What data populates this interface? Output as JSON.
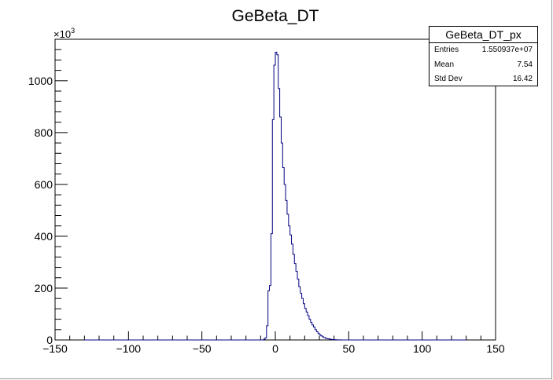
{
  "chart_data": {
    "type": "histogram",
    "title": "GeBeta_DT",
    "xlabel": "",
    "ylabel": "",
    "y_scale_label": "×10",
    "y_scale_exponent": "3",
    "xlim": [
      -150,
      150
    ],
    "ylim": [
      0,
      1160
    ],
    "x_ticks": [
      -150,
      -100,
      -50,
      0,
      50,
      100,
      150
    ],
    "x_tick_labels": [
      "−150",
      "−100",
      "−50",
      "0",
      "50",
      "100",
      "150"
    ],
    "y_ticks": [
      0,
      200,
      400,
      600,
      800,
      1000
    ],
    "y_tick_labels": [
      "0",
      "200",
      "400",
      "600",
      "800",
      "1000"
    ],
    "bin_edges": [
      -130,
      -8,
      -7,
      -6,
      -5,
      -4,
      -3,
      -2,
      -1,
      0,
      1,
      2,
      3,
      4,
      5,
      6,
      7,
      8,
      9,
      10,
      11,
      12,
      13,
      14,
      15,
      16,
      17,
      18,
      19,
      20,
      21,
      22,
      23,
      24,
      25,
      26,
      27,
      28,
      29,
      30,
      31,
      32,
      33,
      34,
      35,
      36,
      37,
      38,
      39,
      40,
      41,
      42,
      43,
      44,
      45,
      46,
      47,
      48,
      50,
      130
    ],
    "bin_values": [
      0,
      3,
      8,
      55,
      190,
      210,
      410,
      850,
      1060,
      1110,
      1100,
      970,
      860,
      760,
      665,
      600,
      538,
      485,
      440,
      405,
      370,
      330,
      295,
      265,
      235,
      205,
      180,
      160,
      140,
      122,
      108,
      94,
      80,
      68,
      58,
      50,
      40,
      32,
      26,
      20,
      16,
      12,
      9,
      7,
      5,
      4,
      3,
      2,
      1.5,
      1,
      0.7,
      0.5,
      0.3,
      0.2,
      0.1,
      0.05,
      0.02,
      0.01,
      0
    ],
    "series": [
      {
        "name": "GeBeta_DT_px",
        "color": "#000080"
      }
    ],
    "stats": {
      "title": "GeBeta_DT_px",
      "rows": [
        {
          "key": "Entries",
          "value": "1.550937e+07"
        },
        {
          "key": "Mean",
          "value": "7.54"
        },
        {
          "key": "Std Dev",
          "value": "16.42"
        }
      ]
    },
    "legend_position": "top-right",
    "grid": false
  }
}
